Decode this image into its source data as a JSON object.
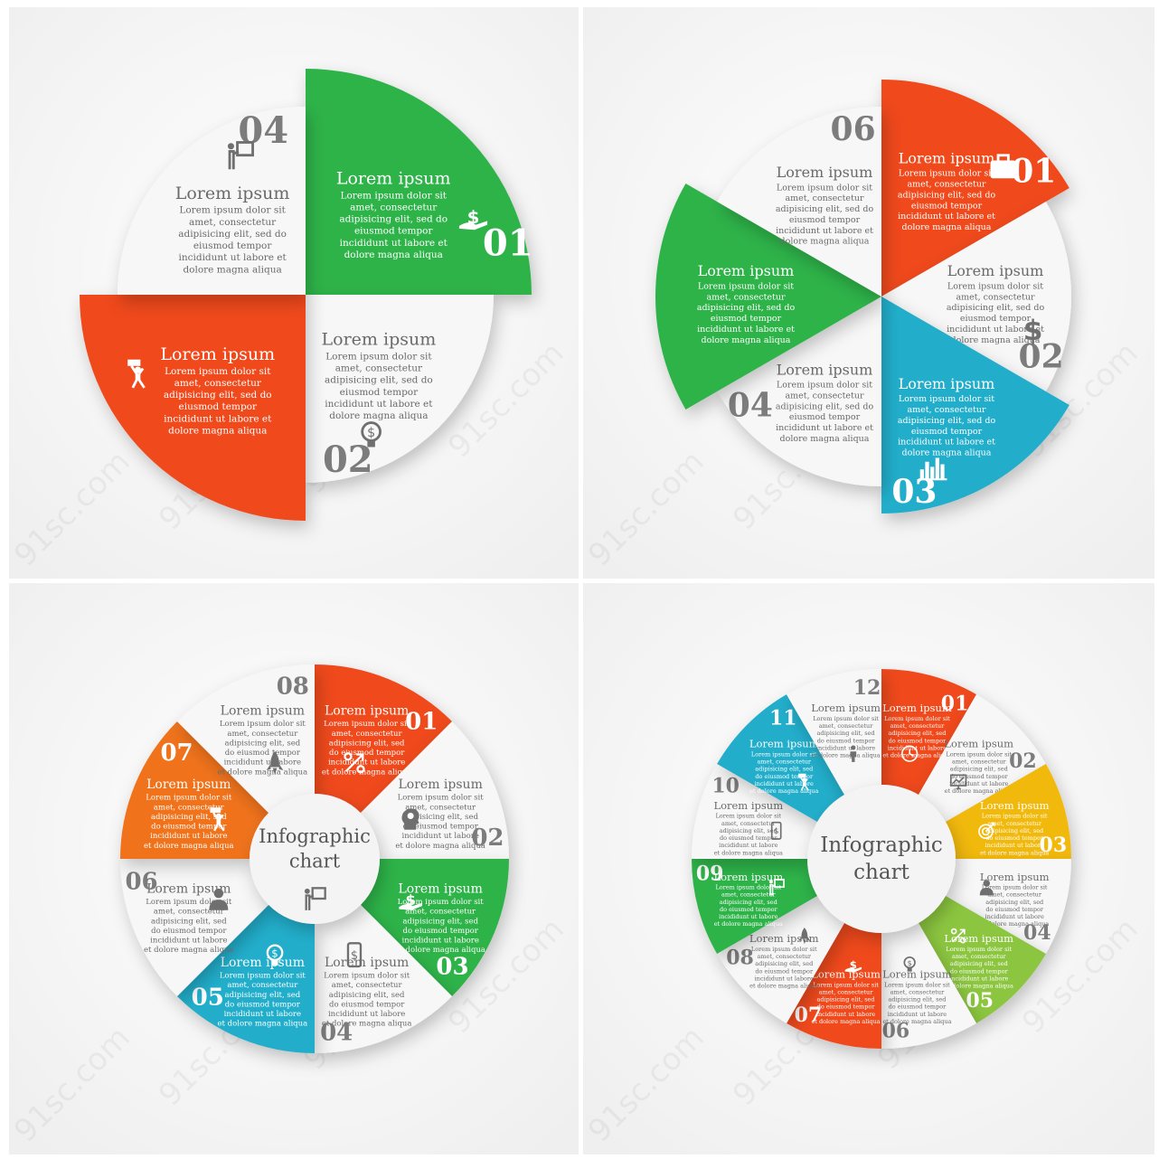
{
  "colors": {
    "green": "#2fb34a",
    "red": "#ef4a1f",
    "blue": "#23aecb",
    "yellow": "#f2b90f",
    "lime": "#8cc63f",
    "orange": "#f0731d",
    "white_segment": "#f7f7f7",
    "grey_text": "#6a6a6a",
    "panel_bg": "#efefef"
  },
  "watermark": "91sc.com",
  "body_text": "Lorem ipsum dolor sit amet, consectetur adipisicing elit, sed do eiusmod tempor incididunt ut labore et dolore magna aliqua",
  "panels": [
    {
      "name": "panel-four-segment",
      "segments": [
        {
          "number": "01",
          "title": "Lorem ipsum",
          "color": "green",
          "icon": "dollar-hand-icon"
        },
        {
          "number": "02",
          "title": "Lorem ipsum",
          "color": "white",
          "icon": "lightbulb-dollar-icon"
        },
        {
          "number": "",
          "title": "Lorem ipsum",
          "color": "red",
          "icon": "man-lifting-money-icon"
        },
        {
          "number": "04",
          "title": "Lorem ipsum",
          "color": "white",
          "icon": "presenter-board-icon"
        }
      ]
    },
    {
      "name": "panel-six-segment",
      "segments": [
        {
          "number": "01",
          "title": "Lorem ipsum",
          "color": "red",
          "icon": "briefcase-icon"
        },
        {
          "number": "02",
          "title": "Lorem ipsum",
          "color": "white",
          "icon": "dollar-icon"
        },
        {
          "number": "03",
          "title": "Lorem ipsum",
          "color": "blue",
          "icon": "bar-chart-icon"
        },
        {
          "number": "04",
          "title": "Lorem ipsum",
          "color": "white",
          "icon": ""
        },
        {
          "number": "",
          "title": "Lorem ipsum",
          "color": "green",
          "icon": ""
        },
        {
          "number": "06",
          "title": "Lorem ipsum",
          "color": "white",
          "icon": ""
        }
      ]
    },
    {
      "name": "panel-eight-segment",
      "center": [
        "Infographic",
        "chart"
      ],
      "segments": [
        {
          "number": "01",
          "title": "Lorem ipsum",
          "color": "red",
          "icon": "percent-arrow-icon"
        },
        {
          "number": "02",
          "title": "Lorem ipsum",
          "color": "white",
          "icon": "head-gear-icon"
        },
        {
          "number": "03",
          "title": "Lorem ipsum",
          "color": "green",
          "icon": "dollar-hand-icon"
        },
        {
          "number": "04",
          "title": "Lorem ipsum",
          "color": "white",
          "icon": "phone-dollar-icon"
        },
        {
          "number": "05",
          "title": "Lorem ipsum",
          "color": "blue",
          "icon": "lightbulb-dollar-icon"
        },
        {
          "number": "06",
          "title": "Lorem ipsum",
          "color": "white",
          "icon": "businessman-icon"
        },
        {
          "number": "07",
          "title": "Lorem ipsum",
          "color": "orange",
          "icon": "man-lifting-money-icon"
        },
        {
          "number": "08",
          "title": "Lorem ipsum",
          "color": "white",
          "icon": "rocket-icon"
        }
      ]
    },
    {
      "name": "panel-twelve-segment",
      "center": [
        "Infographic",
        "chart"
      ],
      "segments": [
        {
          "number": "01",
          "title": "Lorem ipsum",
          "color": "red",
          "icon": "clock-icon"
        },
        {
          "number": "02",
          "title": "Lorem ipsum",
          "color": "white",
          "icon": "monitor-chart-icon"
        },
        {
          "number": "03",
          "title": "Lorem ipsum",
          "color": "yellow",
          "icon": "target-icon"
        },
        {
          "number": "04",
          "title": "Lorem ipsum",
          "color": "white",
          "icon": "businessman-icon"
        },
        {
          "number": "05",
          "title": "Lorem ipsum",
          "color": "lime",
          "icon": "percent-arrow-icon"
        },
        {
          "number": "06",
          "title": "Lorem ipsum",
          "color": "white",
          "icon": "lightbulb-dollar-icon"
        },
        {
          "number": "07",
          "title": "Lorem ipsum",
          "color": "red",
          "icon": "dollar-hand-icon"
        },
        {
          "number": "08",
          "title": "Lorem ipsum",
          "color": "white",
          "icon": "rocket-icon"
        },
        {
          "number": "09",
          "title": "Lorem ipsum",
          "color": "green",
          "icon": "presenter-board-icon"
        },
        {
          "number": "10",
          "title": "Lorem ipsum",
          "color": "white",
          "icon": "phone-dollar-icon"
        },
        {
          "number": "11",
          "title": "Lorem ipsum",
          "color": "blue",
          "icon": "man-lifting-money-icon"
        },
        {
          "number": "12",
          "title": "Lorem ipsum",
          "color": "white",
          "icon": "person-icon"
        }
      ]
    }
  ]
}
